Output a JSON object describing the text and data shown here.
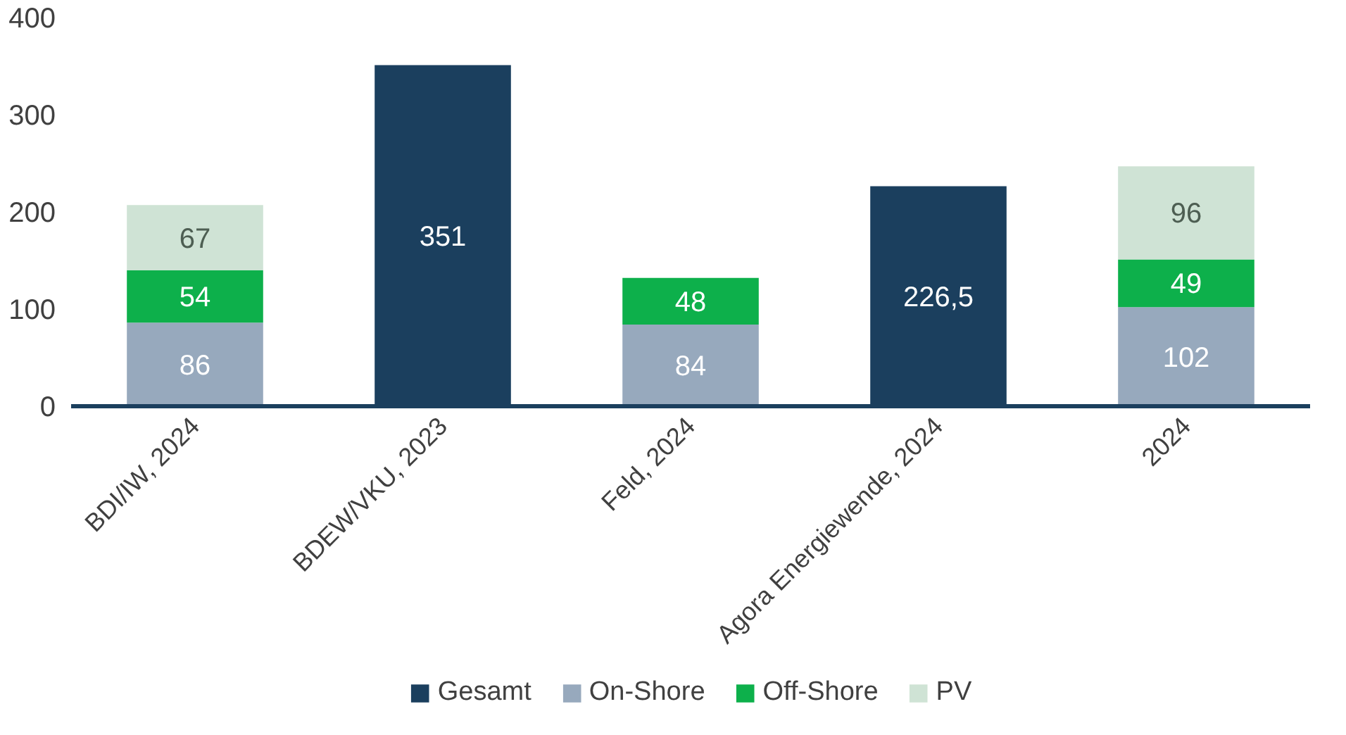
{
  "chart_data": {
    "type": "bar",
    "stacked": true,
    "categories": [
      "BDI/IW, 2024",
      "BDEW/VKU, 2023",
      "Feld, 2024",
      "Agora Energiewende, 2024",
      "2024"
    ],
    "series": [
      {
        "name": "Gesamt",
        "color": "#1b3f5e",
        "values": [
          null,
          351,
          null,
          226.5,
          null
        ],
        "value_labels": [
          null,
          "351",
          null,
          "226,5",
          null
        ]
      },
      {
        "name": "On-Shore",
        "color": "#97a9bd",
        "values": [
          86,
          null,
          84,
          null,
          102
        ],
        "value_labels": [
          "86",
          null,
          "84",
          null,
          "102"
        ]
      },
      {
        "name": "Off-Shore",
        "color": "#0db04b",
        "values": [
          54,
          null,
          48,
          null,
          49
        ],
        "value_labels": [
          "54",
          null,
          "48",
          null,
          "49"
        ]
      },
      {
        "name": "PV",
        "color": "#cfe3d5",
        "values": [
          67,
          null,
          null,
          null,
          96
        ],
        "value_labels": [
          "67",
          null,
          null,
          null,
          "96"
        ]
      }
    ],
    "ylim": [
      0,
      400
    ],
    "yticks": [
      0,
      100,
      200,
      300,
      400
    ],
    "grid": false,
    "legend": "bottom"
  }
}
